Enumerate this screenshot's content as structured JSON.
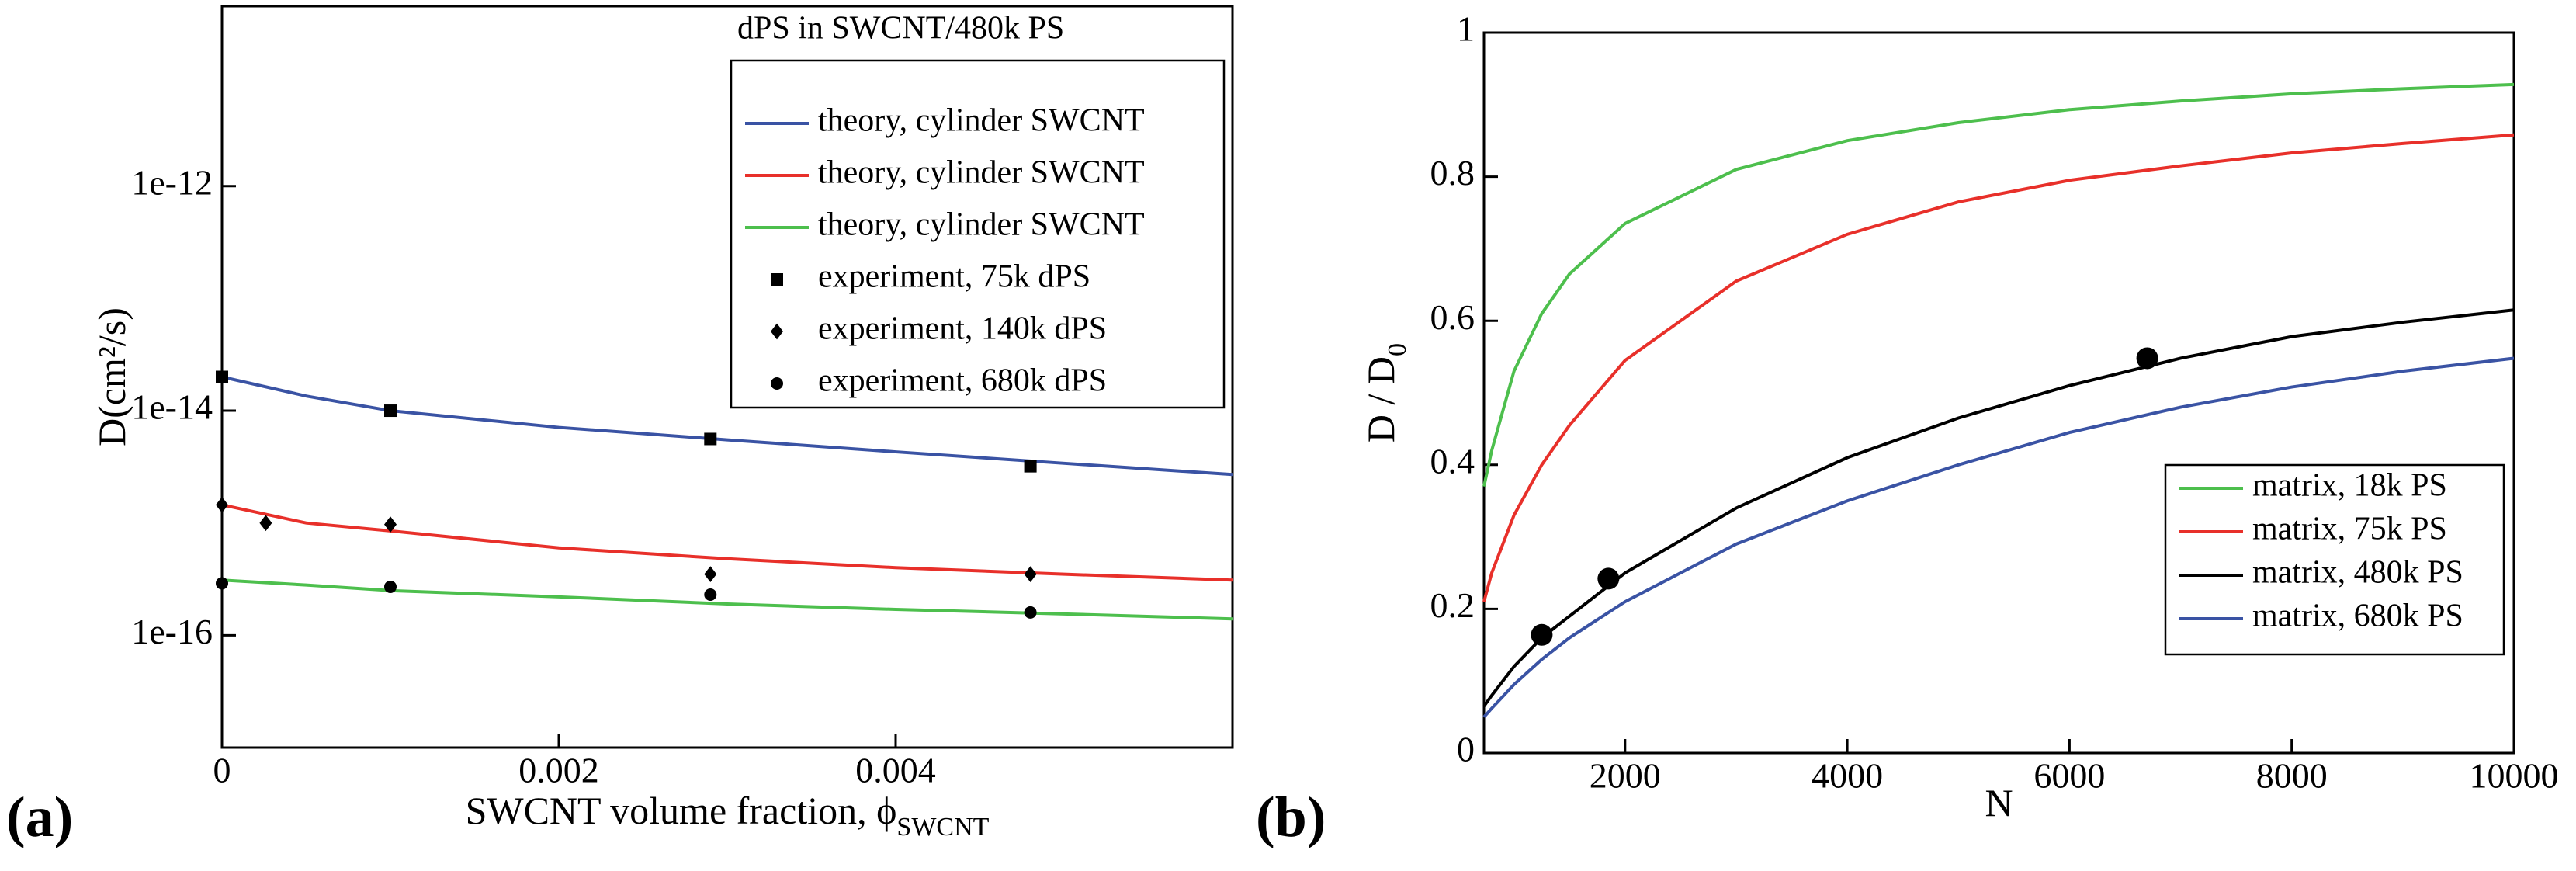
{
  "chart_data": [
    {
      "type": "line",
      "panel_label": "(a)",
      "log_y": true,
      "xlabel": "SWCNT volume fraction, ϕ",
      "xlabel_sub": "SWCNT",
      "ylabel": "D(cm²/s)",
      "xlim": [
        0,
        0.006
      ],
      "xticks": [
        0,
        0.002,
        0.004
      ],
      "ylim": [
        1e-17,
        4e-11
      ],
      "yticks": [
        1e-16,
        1e-14,
        1e-12
      ],
      "legend_title": "dPS in SWCNT/480k PS",
      "legend": "upper right",
      "x": [
        0,
        0.0005,
        0.001,
        0.002,
        0.003,
        0.004,
        0.005,
        0.006
      ],
      "series": [
        {
          "name": "theory, cylinder SWCNT",
          "color": "#3a53a4",
          "values": [
            2e-14,
            1.35e-14,
            1e-14,
            7.1e-15,
            5.5e-15,
            4.3e-15,
            3.4e-15,
            2.7e-15
          ]
        },
        {
          "name": "theory, cylinder SWCNT",
          "color": "#e8302a",
          "values": [
            1.45e-15,
            1e-15,
            8.5e-16,
            6e-16,
            4.8e-16,
            4e-16,
            3.5e-16,
            3.1e-16
          ]
        },
        {
          "name": "theory, cylinder SWCNT",
          "color": "#4dbf4d",
          "values": [
            3.1e-16,
            2.8e-16,
            2.5e-16,
            2.2e-16,
            1.9e-16,
            1.7e-16,
            1.55e-16,
            1.4e-16
          ]
        },
        {
          "name": "experiment, 75k dPS",
          "color": "#000000",
          "marker": "square",
          "x": [
            0,
            0.001,
            0.0029,
            0.0048
          ],
          "values": [
            2e-14,
            1e-14,
            5.6e-15,
            3.2e-15
          ]
        },
        {
          "name": "experiment, 140k dPS",
          "color": "#000000",
          "marker": "diamond",
          "x": [
            0,
            0.00026,
            0.001,
            0.0029,
            0.0048
          ],
          "values": [
            1.45e-15,
            1e-15,
            9.7e-16,
            3.5e-16,
            3.5e-16
          ]
        },
        {
          "name": "experiment, 680k dPS",
          "color": "#000000",
          "marker": "circle",
          "x": [
            0,
            0.001,
            0.0029,
            0.0048
          ],
          "values": [
            2.9e-16,
            2.7e-16,
            2.3e-16,
            1.6e-16
          ]
        }
      ]
    },
    {
      "type": "line",
      "panel_label": "(b)",
      "log_y": false,
      "xlabel": "N",
      "ylabel": "D / D",
      "ylabel_sub": "0",
      "xlim": [
        730,
        10000
      ],
      "xticks": [
        2000,
        4000,
        6000,
        8000,
        10000
      ],
      "ylim": [
        0,
        1
      ],
      "yticks": [
        0,
        0.2,
        0.4,
        0.6,
        0.8,
        1
      ],
      "legend": "lower right",
      "x": [
        730,
        800,
        1000,
        1250,
        1500,
        2000,
        3000,
        4000,
        5000,
        6000,
        7000,
        8000,
        9000,
        10000
      ],
      "series": [
        {
          "name": "matrix, 18k PS",
          "color": "#4dbf4d",
          "values": [
            0.37,
            0.42,
            0.53,
            0.61,
            0.665,
            0.735,
            0.81,
            0.85,
            0.875,
            0.893,
            0.905,
            0.915,
            0.922,
            0.928
          ]
        },
        {
          "name": "matrix, 75k PS",
          "color": "#e8302a",
          "values": [
            0.21,
            0.25,
            0.33,
            0.4,
            0.455,
            0.545,
            0.655,
            0.72,
            0.765,
            0.795,
            0.815,
            0.833,
            0.846,
            0.858
          ]
        },
        {
          "name": "matrix, 480k PS",
          "color": "#000000",
          "values": [
            0.065,
            0.08,
            0.12,
            0.16,
            0.19,
            0.25,
            0.34,
            0.41,
            0.465,
            0.51,
            0.548,
            0.578,
            0.598,
            0.615
          ]
        },
        {
          "name": "matrix, 680k PS",
          "color": "#3a53a4",
          "values": [
            0.05,
            0.062,
            0.095,
            0.13,
            0.16,
            0.21,
            0.29,
            0.35,
            0.4,
            0.445,
            0.48,
            0.508,
            0.53,
            0.548
          ]
        },
        {
          "color": "#000000",
          "marker": "circle",
          "x": [
            1250,
            1850,
            6700
          ],
          "values": [
            0.164,
            0.242,
            0.548
          ]
        }
      ]
    }
  ]
}
